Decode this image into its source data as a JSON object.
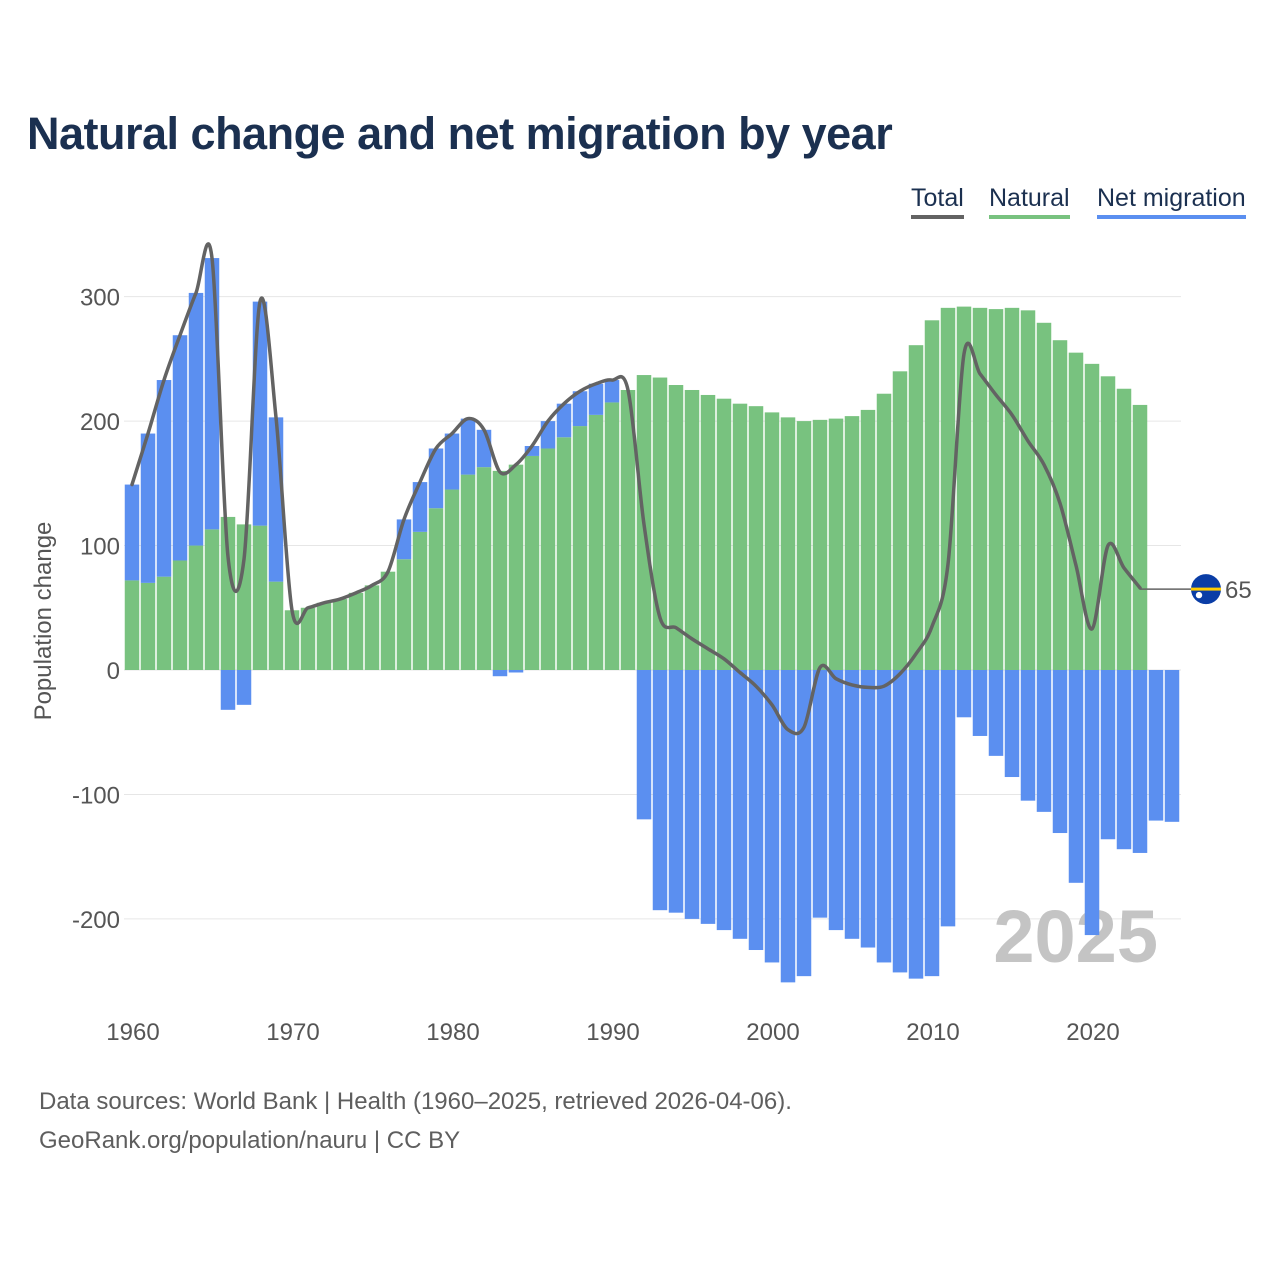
{
  "chart_data": {
    "type": "bar",
    "title": "Natural change and net migration by year",
    "ylabel": "Population change",
    "xlabel": "",
    "ylim": [
      -300,
      330
    ],
    "yticks": [
      300,
      200,
      100,
      0,
      -100,
      -200
    ],
    "ytick_labels": [
      "300",
      "200",
      "100",
      "0",
      "-100",
      "-200"
    ],
    "xticks": [
      1960,
      1970,
      1980,
      1990,
      2000,
      2010,
      2020
    ],
    "xtick_labels": [
      "1960",
      "1970",
      "1980",
      "1990",
      "2000",
      "2010",
      "2020"
    ],
    "year_watermark": "2025",
    "end_value_label": "65",
    "legend": {
      "total": "Total",
      "natural": "Natural",
      "migration": "Net migration"
    },
    "colors": {
      "natural": "#78c27f",
      "migration": "#5b8ff0",
      "total": "#636363",
      "grid": "#e6e6e6",
      "axis_text": "#555555",
      "watermark": "#c4c4c4",
      "flag_blue": "#0a3da6",
      "flag_stripe": "#ffcc00"
    },
    "years": [
      1960,
      1961,
      1962,
      1963,
      1964,
      1965,
      1966,
      1967,
      1968,
      1969,
      1970,
      1971,
      1972,
      1973,
      1974,
      1975,
      1976,
      1977,
      1978,
      1979,
      1980,
      1981,
      1982,
      1983,
      1984,
      1985,
      1986,
      1987,
      1988,
      1989,
      1990,
      1991,
      1992,
      1993,
      1994,
      1995,
      1996,
      1997,
      1998,
      1999,
      2000,
      2001,
      2002,
      2003,
      2004,
      2005,
      2006,
      2007,
      2008,
      2009,
      2010,
      2011,
      2012,
      2013,
      2014,
      2015,
      2016,
      2017,
      2018,
      2019,
      2020,
      2021,
      2022,
      2023,
      2024,
      2025
    ],
    "series": [
      {
        "name": "Natural",
        "values": [
          72,
          70,
          75,
          88,
          100,
          113,
          123,
          117,
          116,
          71,
          48,
          50,
          54,
          57,
          62,
          68,
          79,
          89,
          111,
          130,
          145,
          157,
          163,
          160,
          165,
          172,
          178,
          187,
          196,
          205,
          215,
          225,
          237,
          235,
          229,
          225,
          221,
          218,
          214,
          212,
          207,
          203,
          200,
          201,
          202,
          204,
          209,
          222,
          240,
          261,
          281,
          291,
          292,
          291,
          290,
          291,
          289,
          279,
          265,
          255,
          246,
          236,
          226,
          213,
          null,
          null
        ]
      },
      {
        "name": "Net migration",
        "values": [
          77,
          120,
          158,
          181,
          203,
          218,
          -32,
          -28,
          180,
          132,
          0,
          0,
          0,
          0,
          0,
          0,
          0,
          32,
          40,
          48,
          45,
          45,
          30,
          -5,
          -2,
          8,
          22,
          27,
          28,
          25,
          18,
          0,
          -120,
          -193,
          -195,
          -200,
          -204,
          -209,
          -216,
          -225,
          -235,
          -251,
          -246,
          -199,
          -209,
          -216,
          -223,
          -235,
          -243,
          -248,
          -246,
          -206,
          -38,
          -53,
          -69,
          -86,
          -105,
          -114,
          -131,
          -171,
          -213,
          -136,
          -144,
          -147,
          -121,
          -122
        ]
      },
      {
        "name": "Total",
        "values": [
          149,
          190,
          233,
          269,
          303,
          331,
          91,
          89,
          296,
          203,
          48,
          50,
          54,
          57,
          62,
          68,
          79,
          121,
          151,
          178,
          190,
          202,
          193,
          159,
          165,
          180,
          200,
          214,
          224,
          230,
          233,
          225,
          117,
          42,
          34,
          25,
          17,
          9,
          -2,
          -13,
          -28,
          -48,
          -46,
          2,
          -7,
          -12,
          -14,
          -13,
          -3,
          13,
          35,
          85,
          254,
          238,
          221,
          205,
          184,
          165,
          134,
          84,
          33,
          100,
          82,
          66,
          65,
          65
        ]
      }
    ]
  },
  "footer": {
    "source": "Data sources: World Bank | Health (1960–2025, retrieved 2026-04-06).",
    "credit": "GeoRank.org/population/nauru | CC BY"
  }
}
